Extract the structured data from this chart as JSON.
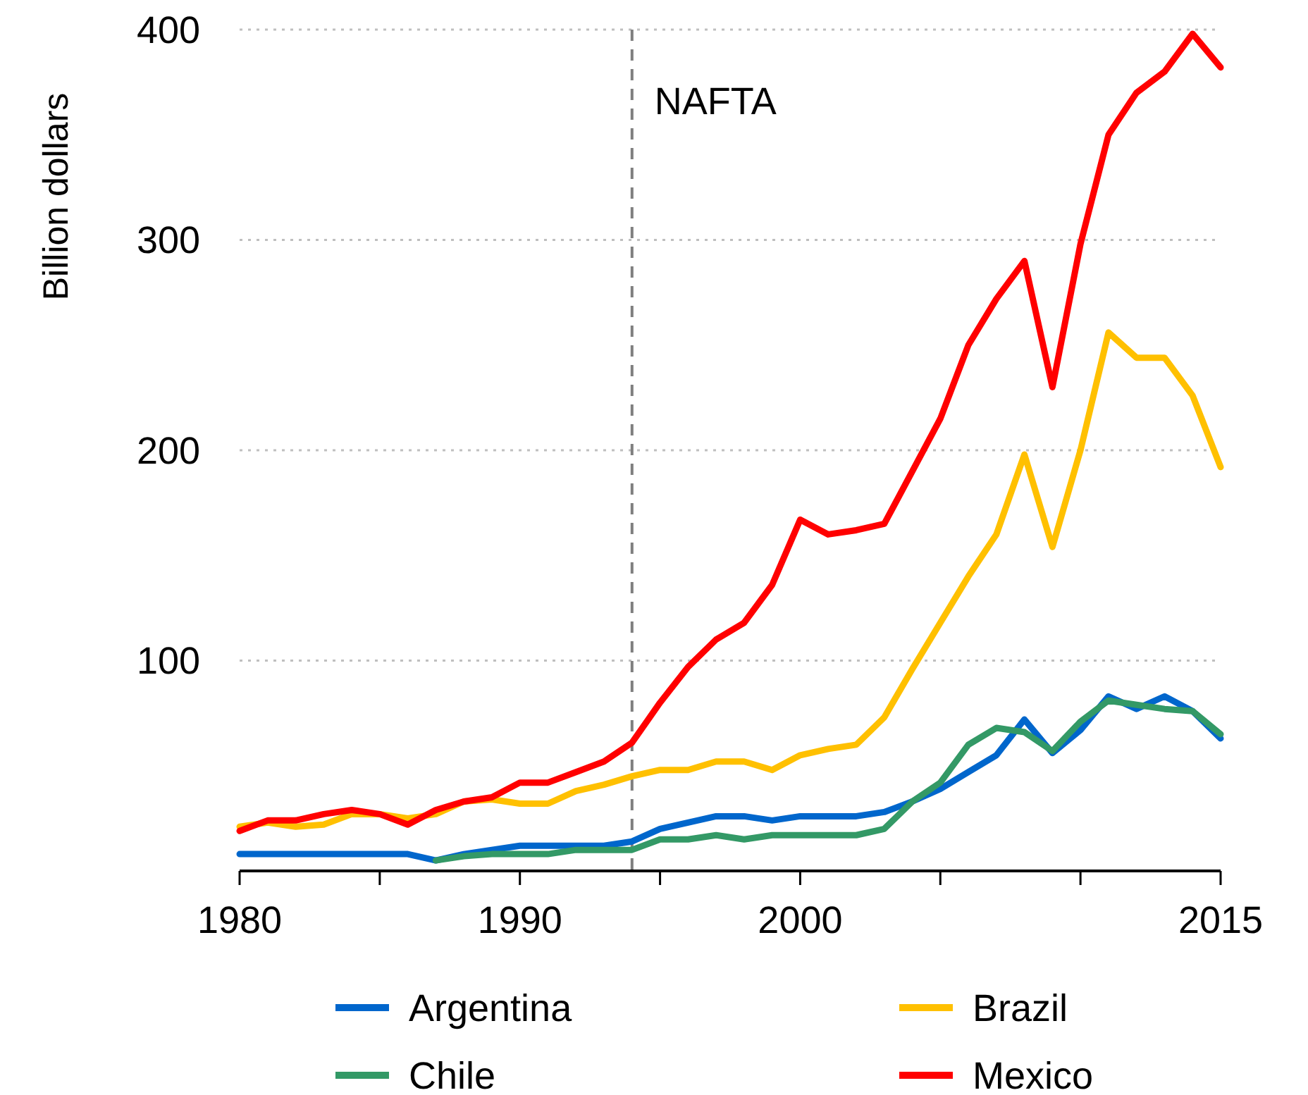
{
  "chart_data": {
    "type": "line",
    "ylabel": "Billion dollars",
    "x": [
      1980,
      1981,
      1982,
      1983,
      1984,
      1985,
      1986,
      1987,
      1988,
      1989,
      1990,
      1991,
      1992,
      1993,
      1994,
      1995,
      1996,
      1997,
      1998,
      1999,
      2000,
      2001,
      2002,
      2003,
      2004,
      2005,
      2006,
      2007,
      2008,
      2009,
      2010,
      2011,
      2012,
      2013,
      2014,
      2015
    ],
    "xlim": [
      1980,
      2015
    ],
    "xticks": [
      1980,
      {
        "value": 1985,
        "label": null
      },
      1990,
      {
        "value": 1995,
        "label": null
      },
      2000,
      {
        "value": 2005,
        "label": null
      },
      {
        "value": 2010,
        "label": null
      },
      2015
    ],
    "ylim": [
      0,
      400
    ],
    "yticks": [
      100,
      200,
      300,
      400
    ],
    "grid": "y",
    "legend": "bottom",
    "line_style": "solid",
    "ref_lines": [
      {
        "axis": "x",
        "value": 1994,
        "label": "NAFTA",
        "color": "#7f7f7f",
        "line_style": "dashed"
      }
    ],
    "series": [
      {
        "name": "Argentina",
        "color": "#0066cc",
        "values": [
          8,
          8,
          8,
          8,
          8,
          8,
          8,
          5,
          8,
          10,
          12,
          12,
          12,
          12,
          14,
          20,
          23,
          26,
          26,
          24,
          26,
          26,
          26,
          28,
          33,
          39,
          47,
          55,
          72,
          56,
          67,
          83,
          77,
          83,
          76,
          63
        ]
      },
      {
        "name": "Brazil",
        "color": "#ffc000",
        "values": [
          21,
          23,
          21,
          22,
          27,
          27,
          25,
          27,
          33,
          34,
          32,
          32,
          38,
          41,
          45,
          48,
          48,
          52,
          52,
          48,
          55,
          58,
          60,
          73,
          96,
          118,
          140,
          160,
          198,
          154,
          200,
          256,
          244,
          244,
          226,
          192
        ]
      },
      {
        "name": "Chile",
        "color": "#339966",
        "values": [
          null,
          null,
          null,
          null,
          null,
          null,
          null,
          5,
          7,
          8,
          8,
          8,
          10,
          10,
          10,
          15,
          15,
          17,
          15,
          17,
          17,
          17,
          17,
          20,
          33,
          42,
          60,
          68,
          66,
          57,
          71,
          81,
          79,
          77,
          76,
          65
        ]
      },
      {
        "name": "Mexico",
        "color": "#ff0000",
        "values": [
          19,
          24,
          24,
          27,
          29,
          27,
          22,
          29,
          33,
          35,
          42,
          42,
          47,
          52,
          61,
          80,
          97,
          110,
          118,
          136,
          167,
          160,
          162,
          165,
          190,
          215,
          250,
          272,
          290,
          230,
          298,
          350,
          370,
          380,
          398,
          382
        ]
      }
    ]
  }
}
